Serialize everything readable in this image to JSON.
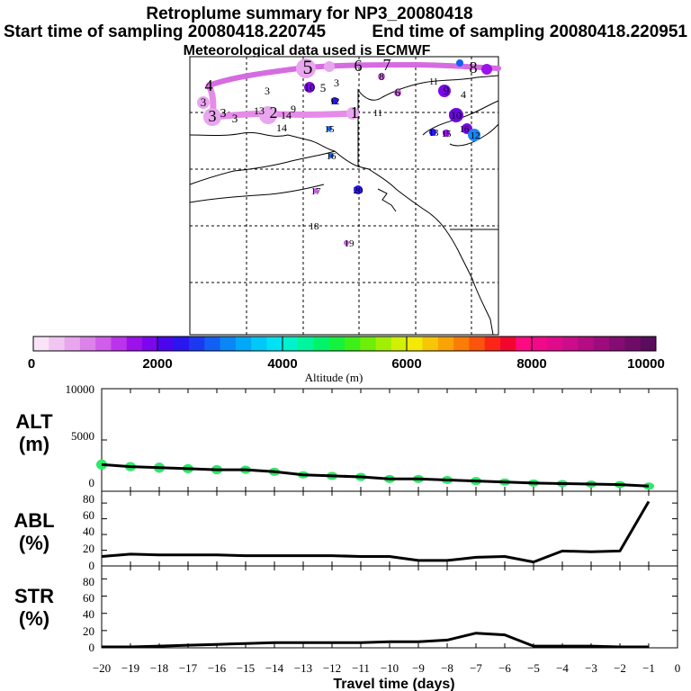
{
  "header": {
    "title": "Retroplume summary for NP3_20080418",
    "start_label": "Start time of sampling 20080418.220745",
    "end_label": "End time of sampling 20080418.220951",
    "met_label": "Meteorological data used is ECMWF"
  },
  "colorbar": {
    "colors": [
      "#f9e3f9",
      "#f1c6f2",
      "#e8a6ee",
      "#dc82ea",
      "#cf5eea",
      "#bb33ea",
      "#9b12ea",
      "#7c06ec",
      "#4a06ec",
      "#2a16ee",
      "#1b3af0",
      "#1260f3",
      "#0a86f5",
      "#02a8f7",
      "#00c8f8",
      "#00e2f4",
      "#00f2cc",
      "#00f59c",
      "#00f46a",
      "#14f23e",
      "#3cf018",
      "#6eee08",
      "#a2ef06",
      "#d2f006",
      "#f2ea06",
      "#f7c606",
      "#f9a306",
      "#fa7d06",
      "#fb540c",
      "#fb2618",
      "#f3062e",
      "#ff0a82",
      "#f00a8a",
      "#e00a8c",
      "#cc0c8a",
      "#b40c84",
      "#9c0c7c",
      "#840c72",
      "#6e0c68",
      "#5a0c5e"
    ],
    "labels": [
      "0",
      "2000",
      "4000",
      "6000",
      "8000",
      "10000"
    ],
    "title": "Altitude (m)"
  },
  "map": {
    "labels": [
      "1",
      "2",
      "3",
      "3",
      "3",
      "3",
      "4",
      "5",
      "6",
      "7",
      "8",
      "9",
      "10",
      "11",
      "12",
      "13",
      "14",
      "15",
      "16",
      "17",
      "18",
      "19",
      "20",
      "3",
      "3",
      "5",
      "4",
      "6",
      "8",
      "9",
      "10",
      "11",
      "12",
      "13",
      "14",
      "15",
      "16"
    ],
    "dots": [
      {
        "day": "5",
        "color": "#e06be6"
      },
      {
        "day": "8",
        "color": "#9b12ea"
      },
      {
        "day": "10",
        "color": "#6a08e0"
      },
      {
        "day": "12",
        "color": "#1b3af0"
      },
      {
        "day": "20",
        "color": "#2a16ee"
      }
    ]
  },
  "chart_data": [
    {
      "type": "line",
      "title": "ALT",
      "ylabel": "ALT (m)",
      "xlabel": "Travel time (days)",
      "x": [
        -20,
        -19,
        -18,
        -17,
        -16,
        -15,
        -14,
        -13,
        -12,
        -11,
        -10,
        -9,
        -8,
        -7,
        -6,
        -5,
        -4,
        -3,
        -2,
        -1
      ],
      "values": [
        2600,
        2400,
        2300,
        2200,
        2100,
        2100,
        1900,
        1600,
        1500,
        1400,
        1200,
        1200,
        1100,
        1000,
        900,
        800,
        750,
        700,
        650,
        500
      ],
      "plume_spread": [
        500,
        450,
        500,
        450,
        450,
        400,
        400,
        350,
        400,
        400,
        400,
        400,
        400,
        400,
        350,
        300,
        300,
        300,
        300,
        250
      ],
      "ylim": [
        0,
        10000
      ],
      "yticks": [
        5000,
        10000
      ],
      "xlim": [
        -20,
        0
      ]
    },
    {
      "type": "line",
      "title": "ABL",
      "ylabel": "ABL (%)",
      "xlabel": "Travel time (days)",
      "x": [
        -20,
        -19,
        -18,
        -17,
        -16,
        -15,
        -14,
        -13,
        -12,
        -11,
        -10,
        -9,
        -8,
        -7,
        -6,
        -5,
        -4,
        -3,
        -2,
        -1
      ],
      "values": [
        12,
        15,
        14,
        14,
        14,
        13,
        13,
        13,
        13,
        12,
        12,
        7,
        7,
        11,
        12,
        5,
        19,
        18,
        19,
        82
      ],
      "ylim": [
        0,
        95
      ],
      "yticks": [
        0,
        20,
        40,
        60,
        80
      ],
      "xlim": [
        -20,
        0
      ]
    },
    {
      "type": "line",
      "title": "STR",
      "ylabel": "STR (%)",
      "xlabel": "Travel time (days)",
      "x": [
        -20,
        -19,
        -18,
        -17,
        -16,
        -15,
        -14,
        -13,
        -12,
        -11,
        -10,
        -9,
        -8,
        -7,
        -6,
        -5,
        -4,
        -3,
        -2,
        -1
      ],
      "values": [
        1,
        1,
        2,
        3,
        4,
        5,
        6,
        6,
        6,
        6,
        7,
        7,
        9,
        17,
        15,
        2,
        2,
        2,
        1,
        1
      ],
      "ylim": [
        0,
        95
      ],
      "yticks": [
        0,
        20,
        40,
        60,
        80
      ],
      "xlim": [
        -20,
        0
      ]
    }
  ],
  "axes": {
    "y_titles": [
      [
        "ALT",
        "(m)"
      ],
      [
        "ABL",
        "(%)"
      ],
      [
        "STR",
        "(%)"
      ]
    ],
    "xtick_labels": [
      "−20",
      "−19",
      "−18",
      "−17",
      "−16",
      "−15",
      "−14",
      "−13",
      "−12",
      "−11",
      "−10",
      "−9",
      "−8",
      "−7",
      "−6",
      "−5",
      "−4",
      "−3",
      "−2",
      "−1",
      "0"
    ],
    "xlabel": "Travel time (days)",
    "alt_ytick_labels": [
      "10000",
      "5000",
      "0"
    ],
    "pct_ytick_labels": [
      "80",
      "60",
      "40",
      "20",
      "0"
    ]
  }
}
